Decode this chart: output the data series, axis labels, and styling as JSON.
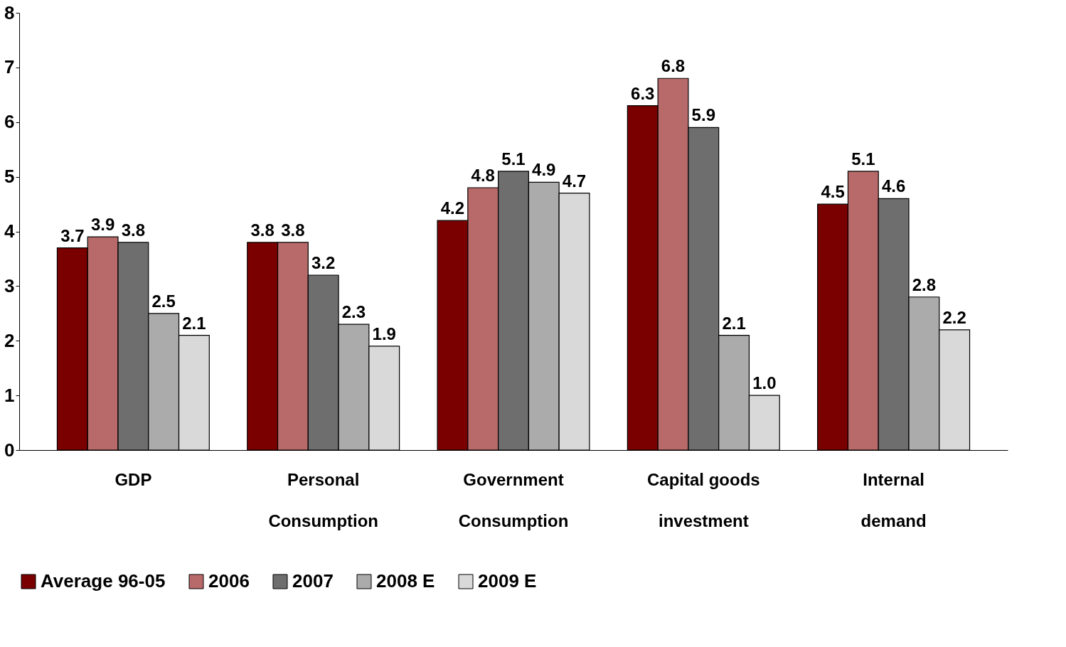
{
  "chart_data": {
    "type": "bar",
    "categories": [
      "GDP",
      "Personal Consumption",
      "Government Consumption",
      "Capital goods investment",
      "Internal demand"
    ],
    "series": [
      {
        "name": "Average 96-05",
        "color": "#7a0000",
        "values": [
          3.7,
          3.8,
          4.2,
          6.3,
          4.5
        ],
        "value_labels": [
          "3.7",
          "3.8",
          "4.2",
          "6.3",
          "4.5"
        ]
      },
      {
        "name": "2006",
        "color": "#b86a6a",
        "values": [
          3.9,
          3.8,
          4.8,
          6.8,
          5.1
        ],
        "value_labels": [
          "3.9",
          "3.8",
          "4.8",
          "6.8",
          "5.1"
        ]
      },
      {
        "name": "2007",
        "color": "#6e6e6e",
        "values": [
          3.8,
          3.2,
          5.1,
          5.9,
          4.6
        ],
        "value_labels": [
          "3.8",
          "3.2",
          "5.1",
          "5.9",
          "4.6"
        ]
      },
      {
        "name": "2008 E",
        "color": "#ababab",
        "values": [
          2.5,
          2.3,
          4.9,
          2.1,
          2.8
        ],
        "value_labels": [
          "2.5",
          "2.3",
          "4.9",
          "2.1",
          "2.8"
        ]
      },
      {
        "name": "2009 E",
        "color": "#d9d9d9",
        "values": [
          2.1,
          1.9,
          4.7,
          1.0,
          2.2
        ],
        "value_labels": [
          "2.1",
          "1.9",
          "4.7",
          "1.0",
          "2.2"
        ]
      }
    ],
    "ylim": [
      0,
      8
    ],
    "yticks": [
      0,
      1,
      2,
      3,
      4,
      5,
      6,
      7,
      8
    ],
    "grid": false,
    "legend": "bottom"
  }
}
